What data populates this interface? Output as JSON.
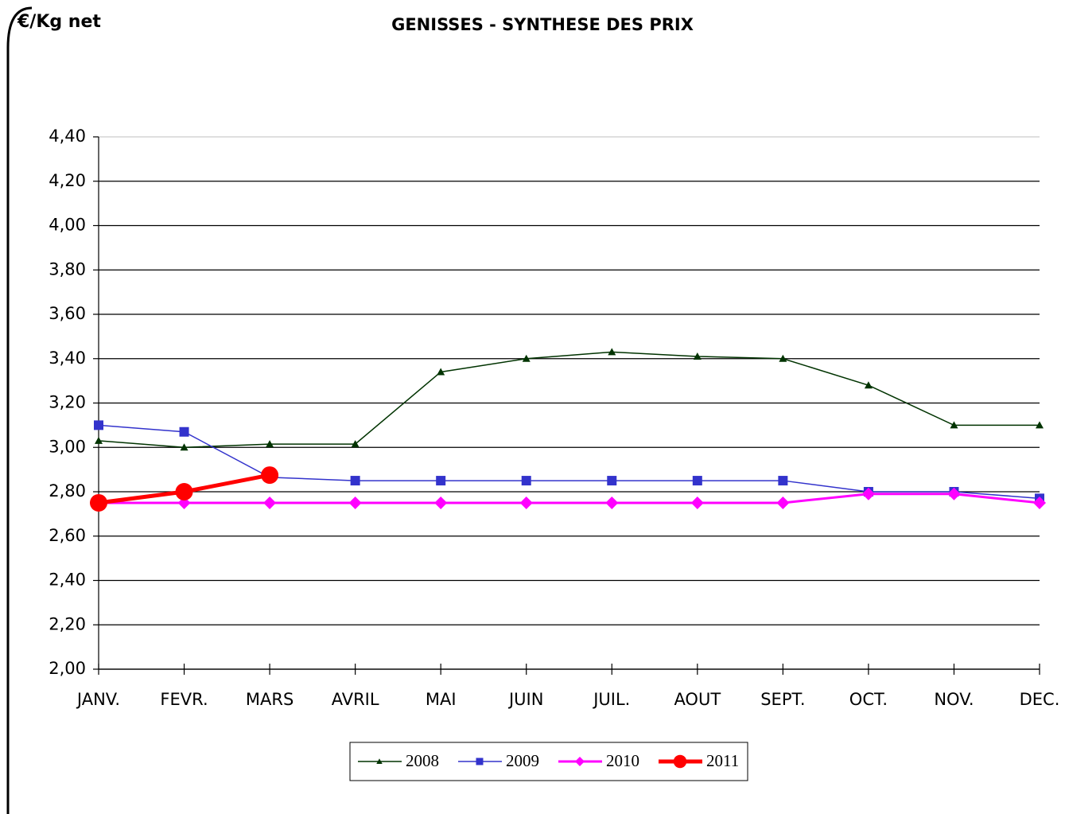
{
  "chart_data": {
    "type": "line",
    "title": "GENISSES - SYNTHESE DES PRIX",
    "y_label": "€/Kg net",
    "categories": [
      "JANV.",
      "FEVR.",
      "MARS",
      "AVRIL",
      "MAI",
      "JUIN",
      "JUIL.",
      "AOUT",
      "SEPT.",
      "OCT.",
      "NOV.",
      "DEC."
    ],
    "series": [
      {
        "name": "2008",
        "color": "#003300",
        "marker": "triangle",
        "values": [
          3.03,
          3.0,
          3.015,
          3.015,
          3.34,
          3.4,
          3.43,
          3.41,
          3.4,
          3.28,
          3.1,
          3.1
        ]
      },
      {
        "name": "2009",
        "color": "#3333cc",
        "marker": "square",
        "values": [
          3.1,
          3.07,
          2.865,
          2.85,
          2.85,
          2.85,
          2.85,
          2.85,
          2.85,
          2.8,
          2.8,
          2.77
        ]
      },
      {
        "name": "2010",
        "color": "#ff00ff",
        "marker": "diamond",
        "values": [
          2.75,
          2.75,
          2.75,
          2.75,
          2.75,
          2.75,
          2.75,
          2.75,
          2.75,
          2.79,
          2.79,
          2.75
        ]
      },
      {
        "name": "2011",
        "color": "#ff0000",
        "marker": "circle",
        "values": [
          2.75,
          2.8,
          2.875,
          null,
          null,
          null,
          null,
          null,
          null,
          null,
          null,
          null
        ]
      }
    ],
    "ylim": [
      2.0,
      4.4
    ],
    "yticks": [
      {
        "value": 2.0,
        "label": "2,00"
      },
      {
        "value": 2.2,
        "label": "2,20"
      },
      {
        "value": 2.4,
        "label": "2,40"
      },
      {
        "value": 2.6,
        "label": "2,60"
      },
      {
        "value": 2.8,
        "label": "2,80"
      },
      {
        "value": 3.0,
        "label": "3,00"
      },
      {
        "value": 3.2,
        "label": "3,20"
      },
      {
        "value": 3.4,
        "label": "3,40"
      },
      {
        "value": 3.6,
        "label": "3,60"
      },
      {
        "value": 3.8,
        "label": "3,80"
      },
      {
        "value": 4.0,
        "label": "4,00"
      },
      {
        "value": 4.2,
        "label": "4,20"
      },
      {
        "value": 4.4,
        "label": "4,40"
      }
    ],
    "grid": true,
    "legend": "bottom"
  }
}
